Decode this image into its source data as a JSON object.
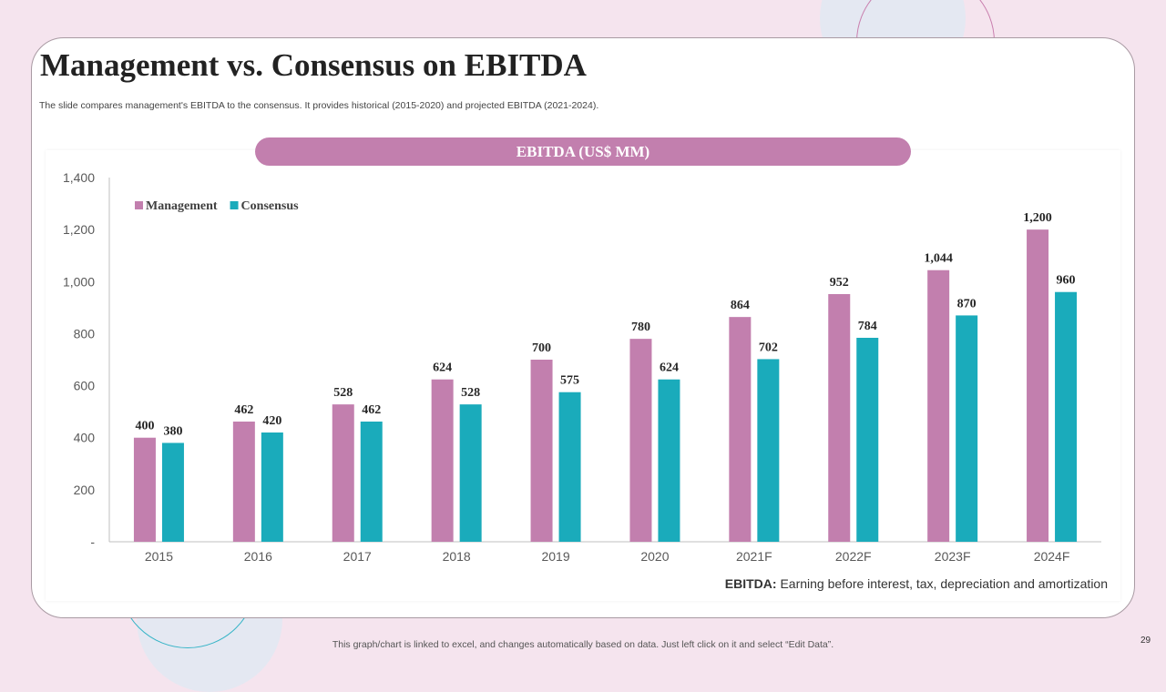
{
  "slide": {
    "title": "Management vs. Consensus on EBITDA",
    "subtitle": "The slide compares management's EBITDA to the consensus. It provides historical (2015-2020) and projected EBITDA (2021-2024).",
    "banner": "EBITDA (US$ MM)",
    "footnote_label": "EBITDA:",
    "footnote_text": " Earning before interest, tax, depreciation and amortization",
    "bottom_note": "This graph/chart is linked to excel,  and changes automatically based on data. Just left click on it and select “Edit Data”.",
    "page_number": "29"
  },
  "chart_data": {
    "type": "bar",
    "categories": [
      "2015",
      "2016",
      "2017",
      "2018",
      "2019",
      "2020",
      "2021F",
      "2022F",
      "2023F",
      "2024F"
    ],
    "series": [
      {
        "name": "Management",
        "color": "#c27fae",
        "values": [
          400,
          462,
          528,
          624,
          700,
          780,
          864,
          952,
          1044,
          1200
        ],
        "labels": [
          "400",
          "462",
          "528",
          "624",
          "700",
          "780",
          "864",
          "952",
          "1,044",
          "1,200"
        ]
      },
      {
        "name": "Consensus",
        "color": "#1aabbb",
        "values": [
          380,
          420,
          462,
          528,
          575,
          624,
          702,
          784,
          870,
          960
        ],
        "labels": [
          "380",
          "420",
          "462",
          "528",
          "575",
          "624",
          "702",
          "784",
          "870",
          "960"
        ]
      }
    ],
    "yticks": [
      0,
      200,
      400,
      600,
      800,
      1000,
      1200,
      1400
    ],
    "ytick_labels": [
      "-",
      "200",
      "400",
      "600",
      "800",
      "1,000",
      "1,200",
      "1,400"
    ],
    "ylim": [
      0,
      1400
    ],
    "legend_position": "top-left",
    "grid": false
  }
}
